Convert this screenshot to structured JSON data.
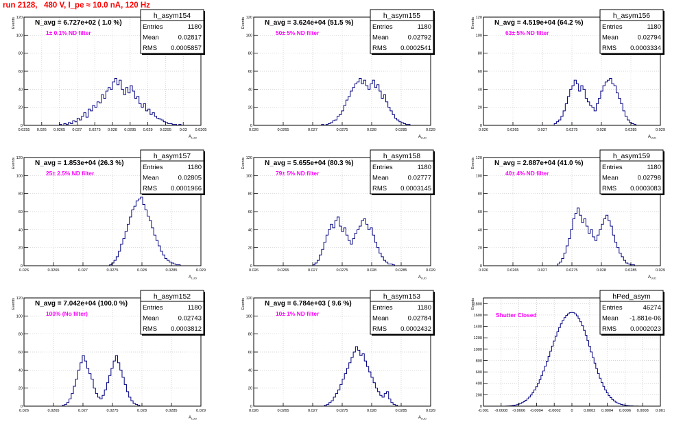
{
  "run_title": "run 2128,   480 V, I_pe ≈ 10.0 nA, 120 Hz",
  "chart_data": [
    {
      "type": "histogram",
      "name": "h_asym154",
      "title": "N_avg = 6.727e+02 ( 1.0 %)",
      "annotation": "1± 0.1% ND filter",
      "stats": {
        "entries": "1180",
        "mean": "0.02817",
        "rms": "0.0005857"
      },
      "xlabel": "A",
      "xlabel_sub": "LUD",
      "ylabel": "Events",
      "xlim": [
        0.0255,
        0.0305
      ],
      "ylim": [
        0,
        120
      ],
      "xticks": [
        0.0255,
        0.026,
        0.0265,
        0.027,
        0.0275,
        0.028,
        0.0285,
        0.029,
        0.0295,
        0.03,
        0.0305
      ],
      "xtick_labels": [
        "0.0255",
        "0.026",
        "0.0265",
        "0.027",
        "0.0275",
        "0.028",
        "0.0285",
        "0.029",
        "0.0295",
        "0.03",
        "0.0305"
      ],
      "yticks": [
        0,
        20,
        40,
        60,
        80,
        100,
        120
      ],
      "ytick_labels": [
        "0",
        "20",
        "40",
        "60",
        "80",
        "100",
        "120"
      ],
      "bins": {
        "start": 0.0265,
        "width": 6.25e-05,
        "counts": [
          1,
          0,
          2,
          1,
          3,
          2,
          5,
          4,
          8,
          6,
          10,
          14,
          9,
          18,
          16,
          22,
          20,
          26,
          25,
          34,
          30,
          38,
          42,
          40,
          48,
          52,
          45,
          50,
          40,
          34,
          42,
          36,
          44,
          38,
          30,
          32,
          24,
          20,
          24,
          16,
          18,
          12,
          14,
          10,
          8,
          7,
          6,
          4,
          3,
          2,
          2,
          1,
          1,
          0,
          1
        ]
      }
    },
    {
      "type": "histogram",
      "name": "h_asym155",
      "title": "N_avg = 3.624e+04 (51.5 %)",
      "annotation": "50± 5% ND filter",
      "stats": {
        "entries": "1180",
        "mean": "0.02792",
        "rms": "0.0002541"
      },
      "xlabel": "A",
      "xlabel_sub": "LUD",
      "ylabel": "Events",
      "xlim": [
        0.026,
        0.029
      ],
      "ylim": [
        0,
        120
      ],
      "xticks": [
        0.026,
        0.0265,
        0.027,
        0.0275,
        0.028,
        0.0285,
        0.029
      ],
      "xtick_labels": [
        "0.026",
        "0.0265",
        "0.027",
        "0.0275",
        "0.028",
        "0.0285",
        "0.029"
      ],
      "yticks": [
        0,
        20,
        40,
        60,
        80,
        100,
        120
      ],
      "ytick_labels": [
        "0",
        "20",
        "40",
        "60",
        "80",
        "100",
        "120"
      ],
      "bins": {
        "start": 0.02715,
        "width": 3.75e-05,
        "counts": [
          1,
          0,
          1,
          2,
          3,
          5,
          6,
          10,
          12,
          16,
          22,
          28,
          32,
          38,
          42,
          46,
          48,
          52,
          46,
          50,
          44,
          40,
          46,
          50,
          42,
          45,
          38,
          30,
          34,
          26,
          20,
          16,
          12,
          8,
          6,
          4,
          3,
          2,
          1,
          1
        ]
      }
    },
    {
      "type": "histogram",
      "name": "h_asym156",
      "title": "N_avg = 4.519e+04 (64.2 %)",
      "annotation": "63± 5% ND filter",
      "stats": {
        "entries": "1180",
        "mean": "0.02794",
        "rms": "0.0003334"
      },
      "xlabel": "A",
      "xlabel_sub": "LUD",
      "ylabel": "Events",
      "xlim": [
        0.026,
        0.029
      ],
      "ylim": [
        0,
        120
      ],
      "xticks": [
        0.026,
        0.0265,
        0.027,
        0.0275,
        0.028,
        0.0285,
        0.029
      ],
      "xtick_labels": [
        "0.026",
        "0.0265",
        "0.027",
        "0.0275",
        "0.028",
        "0.0285",
        "0.029"
      ],
      "yticks": [
        0,
        20,
        40,
        60,
        80,
        100,
        120
      ],
      "ytick_labels": [
        "0",
        "20",
        "40",
        "60",
        "80",
        "100",
        "120"
      ],
      "bins": {
        "start": 0.0272,
        "width": 3.75e-05,
        "counts": [
          2,
          4,
          6,
          10,
          16,
          24,
          32,
          40,
          44,
          50,
          46,
          38,
          44,
          40,
          30,
          26,
          22,
          20,
          16,
          24,
          30,
          38,
          44,
          48,
          50,
          52,
          46,
          44,
          36,
          30,
          24,
          16,
          10,
          6,
          3,
          2,
          1
        ]
      }
    },
    {
      "type": "histogram",
      "name": "h_asym157",
      "title": "N_avg = 1.853e+04 (26.3 %)",
      "annotation": "25± 2.5% ND filter",
      "stats": {
        "entries": "1180",
        "mean": "0.02805",
        "rms": "0.0001966"
      },
      "xlabel": "A",
      "xlabel_sub": "LUD",
      "ylabel": "Events",
      "xlim": [
        0.026,
        0.029
      ],
      "ylim": [
        0,
        120
      ],
      "xticks": [
        0.026,
        0.0265,
        0.027,
        0.0275,
        0.028,
        0.0285,
        0.029
      ],
      "xtick_labels": [
        "0.026",
        "0.0265",
        "0.027",
        "0.0275",
        "0.028",
        "0.0285",
        "0.029"
      ],
      "yticks": [
        0,
        20,
        40,
        60,
        80,
        100,
        120
      ],
      "ytick_labels": [
        "0",
        "20",
        "40",
        "60",
        "80",
        "100",
        "120"
      ],
      "bins": {
        "start": 0.02745,
        "width": 3.75e-05,
        "counts": [
          1,
          3,
          6,
          10,
          16,
          24,
          30,
          38,
          46,
          54,
          62,
          66,
          72,
          74,
          76,
          68,
          62,
          55,
          50,
          42,
          34,
          28,
          22,
          16,
          12,
          8,
          6,
          4,
          3,
          2,
          1,
          1
        ]
      }
    },
    {
      "type": "histogram",
      "name": "h_asym158",
      "title": "N_avg = 5.655e+04 (80.3 %)",
      "annotation": "79± 5% ND filter",
      "stats": {
        "entries": "1180",
        "mean": "0.02777",
        "rms": "0.0003145"
      },
      "xlabel": "A",
      "xlabel_sub": "LUD",
      "ylabel": "Events",
      "xlim": [
        0.026,
        0.029
      ],
      "ylim": [
        0,
        120
      ],
      "xticks": [
        0.026,
        0.0265,
        0.027,
        0.0275,
        0.028,
        0.0285,
        0.029
      ],
      "xtick_labels": [
        "0.026",
        "0.0265",
        "0.027",
        "0.0275",
        "0.028",
        "0.0285",
        "0.029"
      ],
      "yticks": [
        0,
        20,
        40,
        60,
        80,
        100,
        120
      ],
      "ytick_labels": [
        "0",
        "20",
        "40",
        "60",
        "80",
        "100",
        "120"
      ],
      "bins": {
        "start": 0.027,
        "width": 3.75e-05,
        "counts": [
          1,
          3,
          6,
          12,
          18,
          26,
          34,
          40,
          46,
          42,
          50,
          54,
          44,
          38,
          42,
          34,
          28,
          24,
          30,
          36,
          40,
          44,
          50,
          52,
          46,
          40,
          42,
          34,
          26,
          20,
          14,
          10,
          6,
          4,
          2,
          2,
          1
        ]
      }
    },
    {
      "type": "histogram",
      "name": "h_asym159",
      "title": "N_avg = 2.887e+04 (41.0 %)",
      "annotation": "40± 4% ND filter",
      "stats": {
        "entries": "1180",
        "mean": "0.02798",
        "rms": "0.0003083"
      },
      "xlabel": "A",
      "xlabel_sub": "LUD",
      "ylabel": "Events",
      "xlim": [
        0.026,
        0.029
      ],
      "ylim": [
        0,
        120
      ],
      "xticks": [
        0.026,
        0.0265,
        0.027,
        0.0275,
        0.028,
        0.0285,
        0.029
      ],
      "xtick_labels": [
        "0.026",
        "0.0265",
        "0.027",
        "0.0275",
        "0.028",
        "0.0285",
        "0.029"
      ],
      "yticks": [
        0,
        20,
        40,
        60,
        80,
        100,
        120
      ],
      "ytick_labels": [
        "0",
        "20",
        "40",
        "60",
        "80",
        "100",
        "120"
      ],
      "bins": {
        "start": 0.02725,
        "width": 3.75e-05,
        "counts": [
          2,
          4,
          8,
          14,
          22,
          30,
          40,
          52,
          58,
          64,
          56,
          48,
          52,
          44,
          36,
          40,
          32,
          28,
          34,
          40,
          46,
          52,
          56,
          50,
          44,
          34,
          26,
          20,
          14,
          10,
          6,
          3,
          2,
          1,
          1
        ]
      }
    },
    {
      "type": "histogram",
      "name": "h_asym152",
      "title": "N_avg = 7.042e+04 (100.0 %)",
      "annotation": "100% (No filter)",
      "stats": {
        "entries": "1180",
        "mean": "0.02743",
        "rms": "0.0003812"
      },
      "xlabel": "A",
      "xlabel_sub": "LUD",
      "ylabel": "Events",
      "xlim": [
        0.026,
        0.029
      ],
      "ylim": [
        0,
        120
      ],
      "xticks": [
        0.026,
        0.0265,
        0.027,
        0.0275,
        0.028,
        0.0285,
        0.029
      ],
      "xtick_labels": [
        "0.026",
        "0.0265",
        "0.027",
        "0.0275",
        "0.028",
        "0.0285",
        "0.029"
      ],
      "yticks": [
        0,
        20,
        40,
        60,
        80,
        100,
        120
      ],
      "ytick_labels": [
        "0",
        "20",
        "40",
        "60",
        "80",
        "100",
        "120"
      ],
      "bins": {
        "start": 0.02665,
        "width": 3.75e-05,
        "counts": [
          1,
          2,
          4,
          8,
          14,
          22,
          30,
          40,
          48,
          56,
          50,
          42,
          36,
          30,
          20,
          14,
          10,
          8,
          12,
          18,
          26,
          34,
          42,
          50,
          56,
          48,
          40,
          32,
          24,
          16,
          10,
          6,
          3,
          2,
          1
        ]
      }
    },
    {
      "type": "histogram",
      "name": "h_asym153",
      "title": "N_avg = 6.784e+03 ( 9.6 %)",
      "annotation": "10± 1% ND filter",
      "stats": {
        "entries": "1180",
        "mean": "0.02784",
        "rms": "0.0002432"
      },
      "xlabel": "A",
      "xlabel_sub": "LUD",
      "ylabel": "Events",
      "xlim": [
        0.026,
        0.029
      ],
      "ylim": [
        0,
        120
      ],
      "xticks": [
        0.026,
        0.0265,
        0.027,
        0.0275,
        0.028,
        0.0285,
        0.029
      ],
      "xtick_labels": [
        "0.026",
        "0.0265",
        "0.027",
        "0.0275",
        "0.028",
        "0.0285",
        "0.029"
      ],
      "yticks": [
        0,
        20,
        40,
        60,
        80,
        100,
        120
      ],
      "ytick_labels": [
        "0",
        "20",
        "40",
        "60",
        "80",
        "100",
        "120"
      ],
      "bins": {
        "start": 0.0272,
        "width": 3.75e-05,
        "counts": [
          1,
          2,
          4,
          6,
          10,
          14,
          18,
          24,
          30,
          36,
          42,
          48,
          54,
          60,
          66,
          62,
          56,
          58,
          50,
          44,
          38,
          32,
          26,
          20,
          16,
          12,
          10,
          14,
          16,
          8,
          4,
          2,
          1
        ]
      }
    },
    {
      "type": "histogram",
      "name": "hPed_asym",
      "title": "",
      "annotation": "Shutter Closed",
      "stats": {
        "entries": "46274",
        "mean": "-1.881e-06",
        "rms": "0.0002023"
      },
      "xlabel": "",
      "xlabel_sub": "",
      "ylabel": "Events",
      "xlim": [
        -0.001,
        0.001
      ],
      "ylim": [
        0,
        1900
      ],
      "xticks": [
        -0.001,
        -0.0008,
        -0.0006,
        -0.0004,
        -0.0002,
        0,
        0.0002,
        0.0004,
        0.0006,
        0.0008,
        0.001
      ],
      "xtick_labels": [
        "-0.001",
        "-0.0008",
        "-0.0006",
        "-0.0004",
        "-0.0002",
        "0",
        "0.0002",
        "0.0004",
        "0.0006",
        "0.0008",
        "0.001"
      ],
      "yticks": [
        0,
        200,
        400,
        600,
        800,
        1000,
        1200,
        1400,
        1600,
        1800
      ],
      "ytick_labels": [
        "0",
        "200",
        "400",
        "600",
        "800",
        "1000",
        "1200",
        "1400",
        "1600",
        "1800"
      ],
      "bins": {
        "start": -0.00075,
        "width": 2e-05,
        "counts": [
          2,
          3,
          5,
          8,
          12,
          18,
          26,
          36,
          48,
          62,
          80,
          102,
          128,
          160,
          196,
          238,
          286,
          340,
          400,
          466,
          538,
          616,
          700,
          786,
          874,
          964,
          1054,
          1142,
          1226,
          1306,
          1380,
          1446,
          1504,
          1554,
          1592,
          1620,
          1640,
          1646,
          1640,
          1620,
          1586,
          1540,
          1482,
          1412,
          1332,
          1244,
          1150,
          1052,
          952,
          852,
          754,
          660,
          572,
          490,
          414,
          346,
          286,
          234,
          188,
          150,
          118,
          92,
          70,
          54,
          40,
          30,
          22,
          16,
          11,
          8,
          5,
          4,
          2,
          1,
          1
        ]
      }
    }
  ]
}
